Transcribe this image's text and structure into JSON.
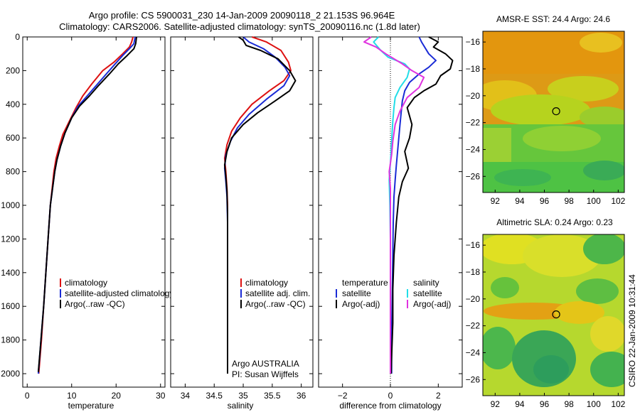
{
  "header": {
    "line1": "Argo profile: CS 5900031_230 14-Jan-2009 20090118_2 21.153S 96.964E",
    "line2": "Climatology: CARS2006. Satellite-adjusted climatology: synTS_20090116.nc (1.8d later)"
  },
  "side_label": "CSIRO 22-Jan-2009 10:31:44",
  "colors": {
    "red": "#dd1111",
    "blue": "#1a2bd6",
    "black": "#000000",
    "cyan": "#22dde8",
    "magenta": "#e033e0"
  },
  "chart_data": [
    {
      "type": "line",
      "xlabel": "temperature",
      "xlim": [
        -1,
        31
      ],
      "ylim": [
        0,
        2080
      ],
      "y_inverted": true,
      "xticks": [
        0,
        10,
        20,
        30
      ],
      "yticks": [
        0,
        200,
        400,
        600,
        800,
        1000,
        1200,
        1400,
        1600,
        1800,
        2000
      ],
      "legend": [
        "climatology",
        "satellite-adjusted climatology",
        "Argo(..raw -QC)"
      ],
      "series": [
        {
          "name": "climatology",
          "color": "red",
          "points": [
            [
              23.8,
              0
            ],
            [
              23.5,
              30
            ],
            [
              23,
              60
            ],
            [
              21.5,
              100
            ],
            [
              19.5,
              150
            ],
            [
              17,
              200
            ],
            [
              14.5,
              280
            ],
            [
              12.5,
              350
            ],
            [
              11,
              420
            ],
            [
              9.5,
              500
            ],
            [
              8,
              580
            ],
            [
              7.2,
              650
            ],
            [
              6.5,
              720
            ],
            [
              6,
              800
            ],
            [
              5.6,
              900
            ],
            [
              5.2,
              1000
            ],
            [
              4.7,
              1200
            ],
            [
              4.2,
              1400
            ],
            [
              3.7,
              1600
            ],
            [
              3.2,
              1800
            ],
            [
              2.6,
              2000
            ]
          ]
        },
        {
          "name": "satellite-adjusted climatology",
          "color": "blue",
          "points": [
            [
              24.3,
              0
            ],
            [
              24,
              40
            ],
            [
              23,
              70
            ],
            [
              21.5,
              110
            ],
            [
              19.8,
              160
            ],
            [
              17.8,
              220
            ],
            [
              15.5,
              290
            ],
            [
              13.5,
              350
            ],
            [
              11.5,
              410
            ],
            [
              10,
              480
            ],
            [
              8.5,
              570
            ],
            [
              7.5,
              650
            ],
            [
              6.7,
              730
            ],
            [
              6.2,
              800
            ],
            [
              5.7,
              900
            ],
            [
              5.2,
              1000
            ],
            [
              4.7,
              1200
            ],
            [
              4.2,
              1400
            ],
            [
              3.7,
              1600
            ],
            [
              3.1,
              1800
            ],
            [
              2.5,
              2000
            ]
          ]
        },
        {
          "name": "Argo(..raw -QC)",
          "color": "black",
          "points": [
            [
              24.6,
              0
            ],
            [
              24.4,
              40
            ],
            [
              24,
              70
            ],
            [
              22.5,
              110
            ],
            [
              20.5,
              160
            ],
            [
              18.5,
              220
            ],
            [
              16,
              290
            ],
            [
              14,
              350
            ],
            [
              11.8,
              410
            ],
            [
              10,
              480
            ],
            [
              8.5,
              570
            ],
            [
              7.5,
              650
            ],
            [
              6.7,
              730
            ],
            [
              6.2,
              800
            ],
            [
              5.7,
              900
            ],
            [
              5.2,
              1000
            ],
            [
              4.7,
              1200
            ],
            [
              4.2,
              1400
            ],
            [
              3.7,
              1600
            ],
            [
              3.1,
              1800
            ],
            [
              2.5,
              1990
            ]
          ]
        }
      ]
    },
    {
      "type": "line",
      "xlabel": "salinity",
      "xlim": [
        33.75,
        36.2
      ],
      "ylim": [
        0,
        2080
      ],
      "y_inverted": true,
      "xticks": [
        34,
        34.5,
        35,
        35.5,
        36
      ],
      "legend": [
        "climatology",
        "satellite adj. clim.",
        "Argo(..raw -QC)"
      ],
      "annotation": [
        "Argo AUSTRALIA",
        "PI: Susan Wijffels"
      ],
      "series": [
        {
          "name": "climatology",
          "color": "red",
          "points": [
            [
              35.15,
              0
            ],
            [
              35.4,
              30
            ],
            [
              35.65,
              80
            ],
            [
              35.78,
              150
            ],
            [
              35.82,
              200
            ],
            [
              35.7,
              260
            ],
            [
              35.45,
              320
            ],
            [
              35.15,
              400
            ],
            [
              34.95,
              480
            ],
            [
              34.8,
              560
            ],
            [
              34.72,
              640
            ],
            [
              34.68,
              720
            ],
            [
              34.7,
              800
            ],
            [
              34.72,
              900
            ],
            [
              34.73,
              1000
            ],
            [
              34.73,
              1200
            ],
            [
              34.73,
              1400
            ],
            [
              34.73,
              1600
            ],
            [
              34.73,
              1800
            ],
            [
              34.73,
              2000
            ]
          ]
        },
        {
          "name": "satellite adj. clim.",
          "color": "blue",
          "points": [
            [
              35,
              0
            ],
            [
              35.1,
              30
            ],
            [
              35.35,
              70
            ],
            [
              35.55,
              120
            ],
            [
              35.72,
              180
            ],
            [
              35.8,
              230
            ],
            [
              35.7,
              290
            ],
            [
              35.4,
              370
            ],
            [
              35.1,
              460
            ],
            [
              34.9,
              540
            ],
            [
              34.78,
              620
            ],
            [
              34.7,
              700
            ],
            [
              34.68,
              780
            ],
            [
              34.7,
              860
            ],
            [
              34.72,
              950
            ],
            [
              34.73,
              1100
            ],
            [
              34.73,
              1400
            ],
            [
              34.73,
              1700
            ],
            [
              34.73,
              2000
            ]
          ]
        },
        {
          "name": "Argo(..raw -QC)",
          "color": "black",
          "points": [
            [
              34.92,
              0
            ],
            [
              35,
              20
            ],
            [
              35.05,
              50
            ],
            [
              35.3,
              80
            ],
            [
              35.6,
              130
            ],
            [
              35.8,
              200
            ],
            [
              35.9,
              260
            ],
            [
              35.8,
              320
            ],
            [
              35.55,
              380
            ],
            [
              35.25,
              450
            ],
            [
              35,
              520
            ],
            [
              34.8,
              600
            ],
            [
              34.72,
              680
            ],
            [
              34.68,
              760
            ],
            [
              34.7,
              830
            ],
            [
              34.72,
              920
            ],
            [
              34.73,
              1050
            ],
            [
              34.73,
              1400
            ],
            [
              34.73,
              1700
            ],
            [
              34.73,
              2000
            ]
          ]
        }
      ]
    },
    {
      "type": "line",
      "xlabel": "difference from climatology",
      "xlim": [
        -3,
        3
      ],
      "ylim": [
        0,
        2080
      ],
      "y_inverted": true,
      "xticks": [
        -2,
        0,
        2
      ],
      "zero_line": true,
      "legend_left": {
        "title": "temperature",
        "items": [
          "satellite",
          "Argo(-adj)"
        ]
      },
      "legend_right": {
        "title": "salinity",
        "items": [
          "satellite",
          "Argo(-adj)"
        ]
      },
      "series": [
        {
          "name": "temperature satellite",
          "color": "blue",
          "points": [
            [
              1.2,
              0
            ],
            [
              1.3,
              30
            ],
            [
              1.6,
              100
            ],
            [
              1.9,
              140
            ],
            [
              1.6,
              180
            ],
            [
              1.2,
              220
            ],
            [
              0.8,
              270
            ],
            [
              0.6,
              320
            ],
            [
              0.5,
              380
            ],
            [
              0.45,
              450
            ],
            [
              0.4,
              520
            ],
            [
              0.35,
              600
            ],
            [
              0.3,
              680
            ],
            [
              0.25,
              760
            ],
            [
              0.2,
              850
            ],
            [
              0.15,
              950
            ],
            [
              0.12,
              1100
            ],
            [
              0.1,
              1300
            ],
            [
              0.08,
              1500
            ],
            [
              0.06,
              1700
            ],
            [
              0.05,
              1900
            ],
            [
              0.05,
              2000
            ]
          ]
        },
        {
          "name": "temperature Argo(-adj)",
          "color": "black",
          "points": [
            [
              1.6,
              0
            ],
            [
              2,
              30
            ],
            [
              1.8,
              60
            ],
            [
              2.3,
              100
            ],
            [
              2.6,
              140
            ],
            [
              2.5,
              190
            ],
            [
              2.1,
              230
            ],
            [
              1.9,
              280
            ],
            [
              1.4,
              320
            ],
            [
              1,
              360
            ],
            [
              0.7,
              420
            ],
            [
              0.9,
              520
            ],
            [
              0.8,
              600
            ],
            [
              0.6,
              680
            ],
            [
              0.75,
              780
            ],
            [
              0.5,
              860
            ],
            [
              0.35,
              950
            ],
            [
              0.25,
              1100
            ],
            [
              0.15,
              1300
            ],
            [
              0.1,
              1500
            ],
            [
              0.1,
              1700
            ],
            [
              0.05,
              1900
            ],
            [
              0.03,
              2000
            ]
          ]
        },
        {
          "name": "salinity satellite",
          "color": "cyan",
          "points": [
            [
              -0.5,
              0
            ],
            [
              -0.7,
              30
            ],
            [
              -0.4,
              80
            ],
            [
              -0.1,
              120
            ],
            [
              0.6,
              160
            ],
            [
              0.8,
              190
            ],
            [
              0.7,
              240
            ],
            [
              0.4,
              300
            ],
            [
              0.2,
              360
            ],
            [
              0.15,
              420
            ],
            [
              0.1,
              500
            ],
            [
              0.05,
              620
            ],
            [
              0,
              750
            ],
            [
              -0.05,
              850
            ],
            [
              -0.02,
              1000
            ],
            [
              0,
              1200
            ],
            [
              0,
              1500
            ],
            [
              0,
              1800
            ],
            [
              0,
              2000
            ]
          ]
        },
        {
          "name": "salinity Argo(-adj)",
          "color": "magenta",
          "points": [
            [
              -0.8,
              0
            ],
            [
              -1.1,
              30
            ],
            [
              -0.6,
              60
            ],
            [
              -0.2,
              100
            ],
            [
              0.5,
              160
            ],
            [
              0.9,
              200
            ],
            [
              1.4,
              240
            ],
            [
              1.2,
              300
            ],
            [
              0.7,
              360
            ],
            [
              0.4,
              440
            ],
            [
              0.2,
              520
            ],
            [
              0.1,
              620
            ],
            [
              0.05,
              700
            ],
            [
              -0.05,
              800
            ],
            [
              0,
              900
            ],
            [
              0,
              1000
            ],
            [
              0,
              1200
            ],
            [
              0,
              1500
            ],
            [
              0,
              1800
            ],
            [
              0,
              2000
            ]
          ]
        }
      ]
    },
    {
      "type": "heatmap",
      "title": "AMSR-E SST: 24.4 Argo: 24.6",
      "xticks": [
        92,
        94,
        96,
        98,
        100,
        102
      ],
      "yticks": [
        -16,
        -18,
        -20,
        -22,
        -24,
        -26
      ],
      "xlim": [
        91,
        102.5
      ],
      "ylim": [
        -27.2,
        -15.2
      ],
      "marker": [
        96.96,
        -21.15
      ]
    },
    {
      "type": "heatmap",
      "title": "Altimetric SLA: 0.24 Argo: 0.23",
      "xticks": [
        92,
        94,
        96,
        98,
        100,
        102
      ],
      "yticks": [
        -16,
        -18,
        -20,
        -22,
        -24,
        -26
      ],
      "xlim": [
        91,
        102.5
      ],
      "ylim": [
        -27.2,
        -15.2
      ],
      "marker": [
        96.96,
        -21.15
      ]
    }
  ]
}
